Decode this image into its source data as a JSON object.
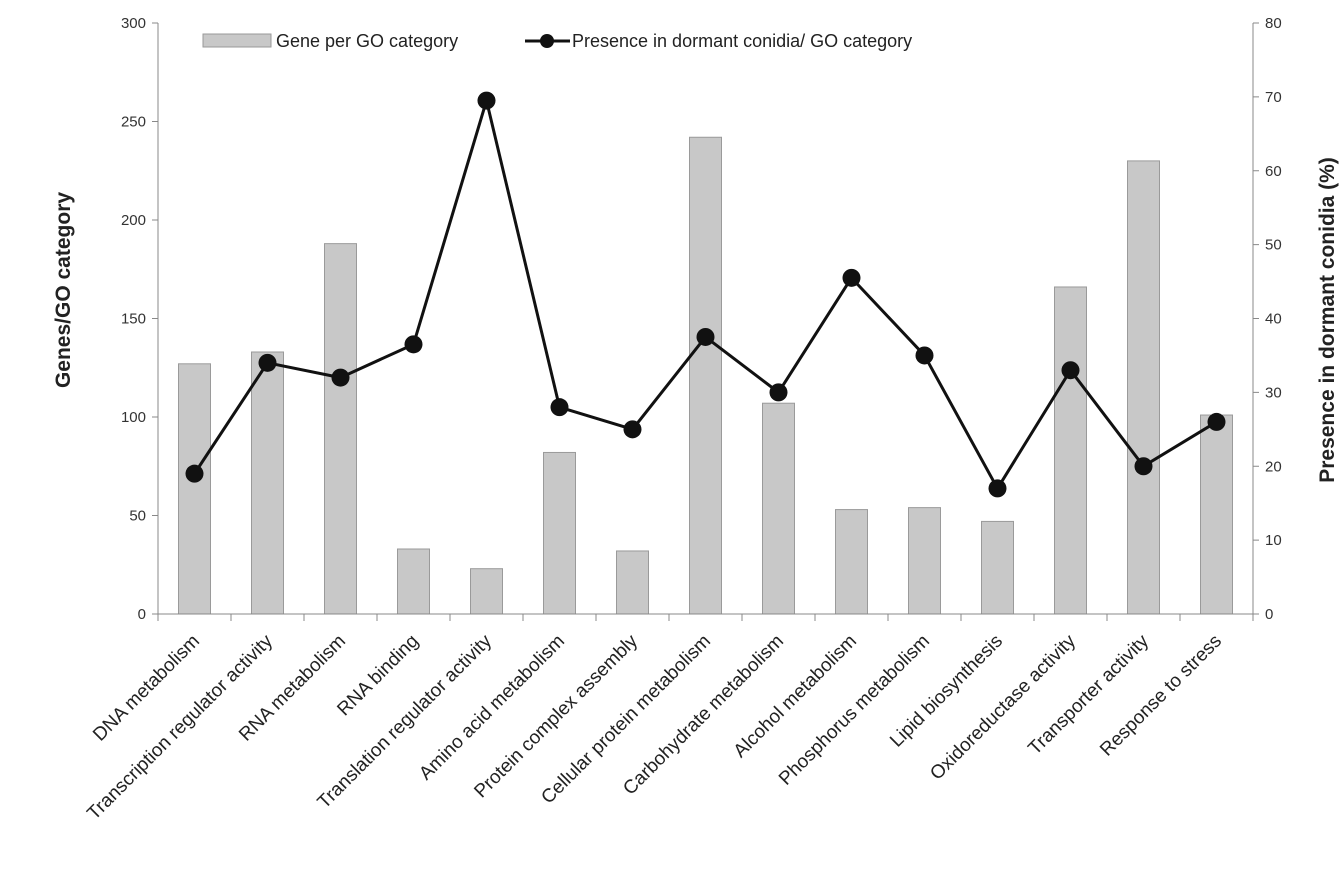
{
  "chart_data": {
    "type": "bar+line",
    "categories": [
      "DNA metabolism",
      "Transcription regulator activity",
      "RNA metabolism",
      "RNA binding",
      "Translation regulator activity",
      "Amino acid metabolism",
      "Protein complex assembly",
      "Cellular protein metabolism",
      "Carbohydrate metabolism",
      "Alcohol metabolism",
      "Phosphorus metabolism",
      "Lipid biosynthesis",
      "Oxidoreductase activity",
      "Transporter activity",
      "Response to stress"
    ],
    "series": [
      {
        "name": "Gene per GO category",
        "type": "bar",
        "axis": "left",
        "color": "#c8c8c8",
        "values": [
          127,
          133,
          188,
          33,
          23,
          82,
          32,
          242,
          107,
          53,
          54,
          47,
          166,
          230,
          101
        ]
      },
      {
        "name": "Presence in dormant conidia/ GO category",
        "type": "line",
        "axis": "right",
        "color": "#111111",
        "values": [
          19,
          34,
          32,
          36.5,
          69.5,
          28,
          25,
          37.5,
          30,
          45.5,
          35,
          17,
          33,
          20,
          26
        ]
      }
    ],
    "ylabel_left": "Genes/GO category",
    "ylabel_right": "Presence in dormant conidia (%)",
    "ylim_left": [
      0,
      300
    ],
    "yticks_left": [
      0,
      50,
      100,
      150,
      200,
      250,
      300
    ],
    "ylim_right": [
      0,
      80
    ],
    "yticks_right": [
      0,
      10,
      20,
      30,
      40,
      50,
      60,
      70,
      80
    ],
    "grid": false,
    "legend_position": "top"
  }
}
